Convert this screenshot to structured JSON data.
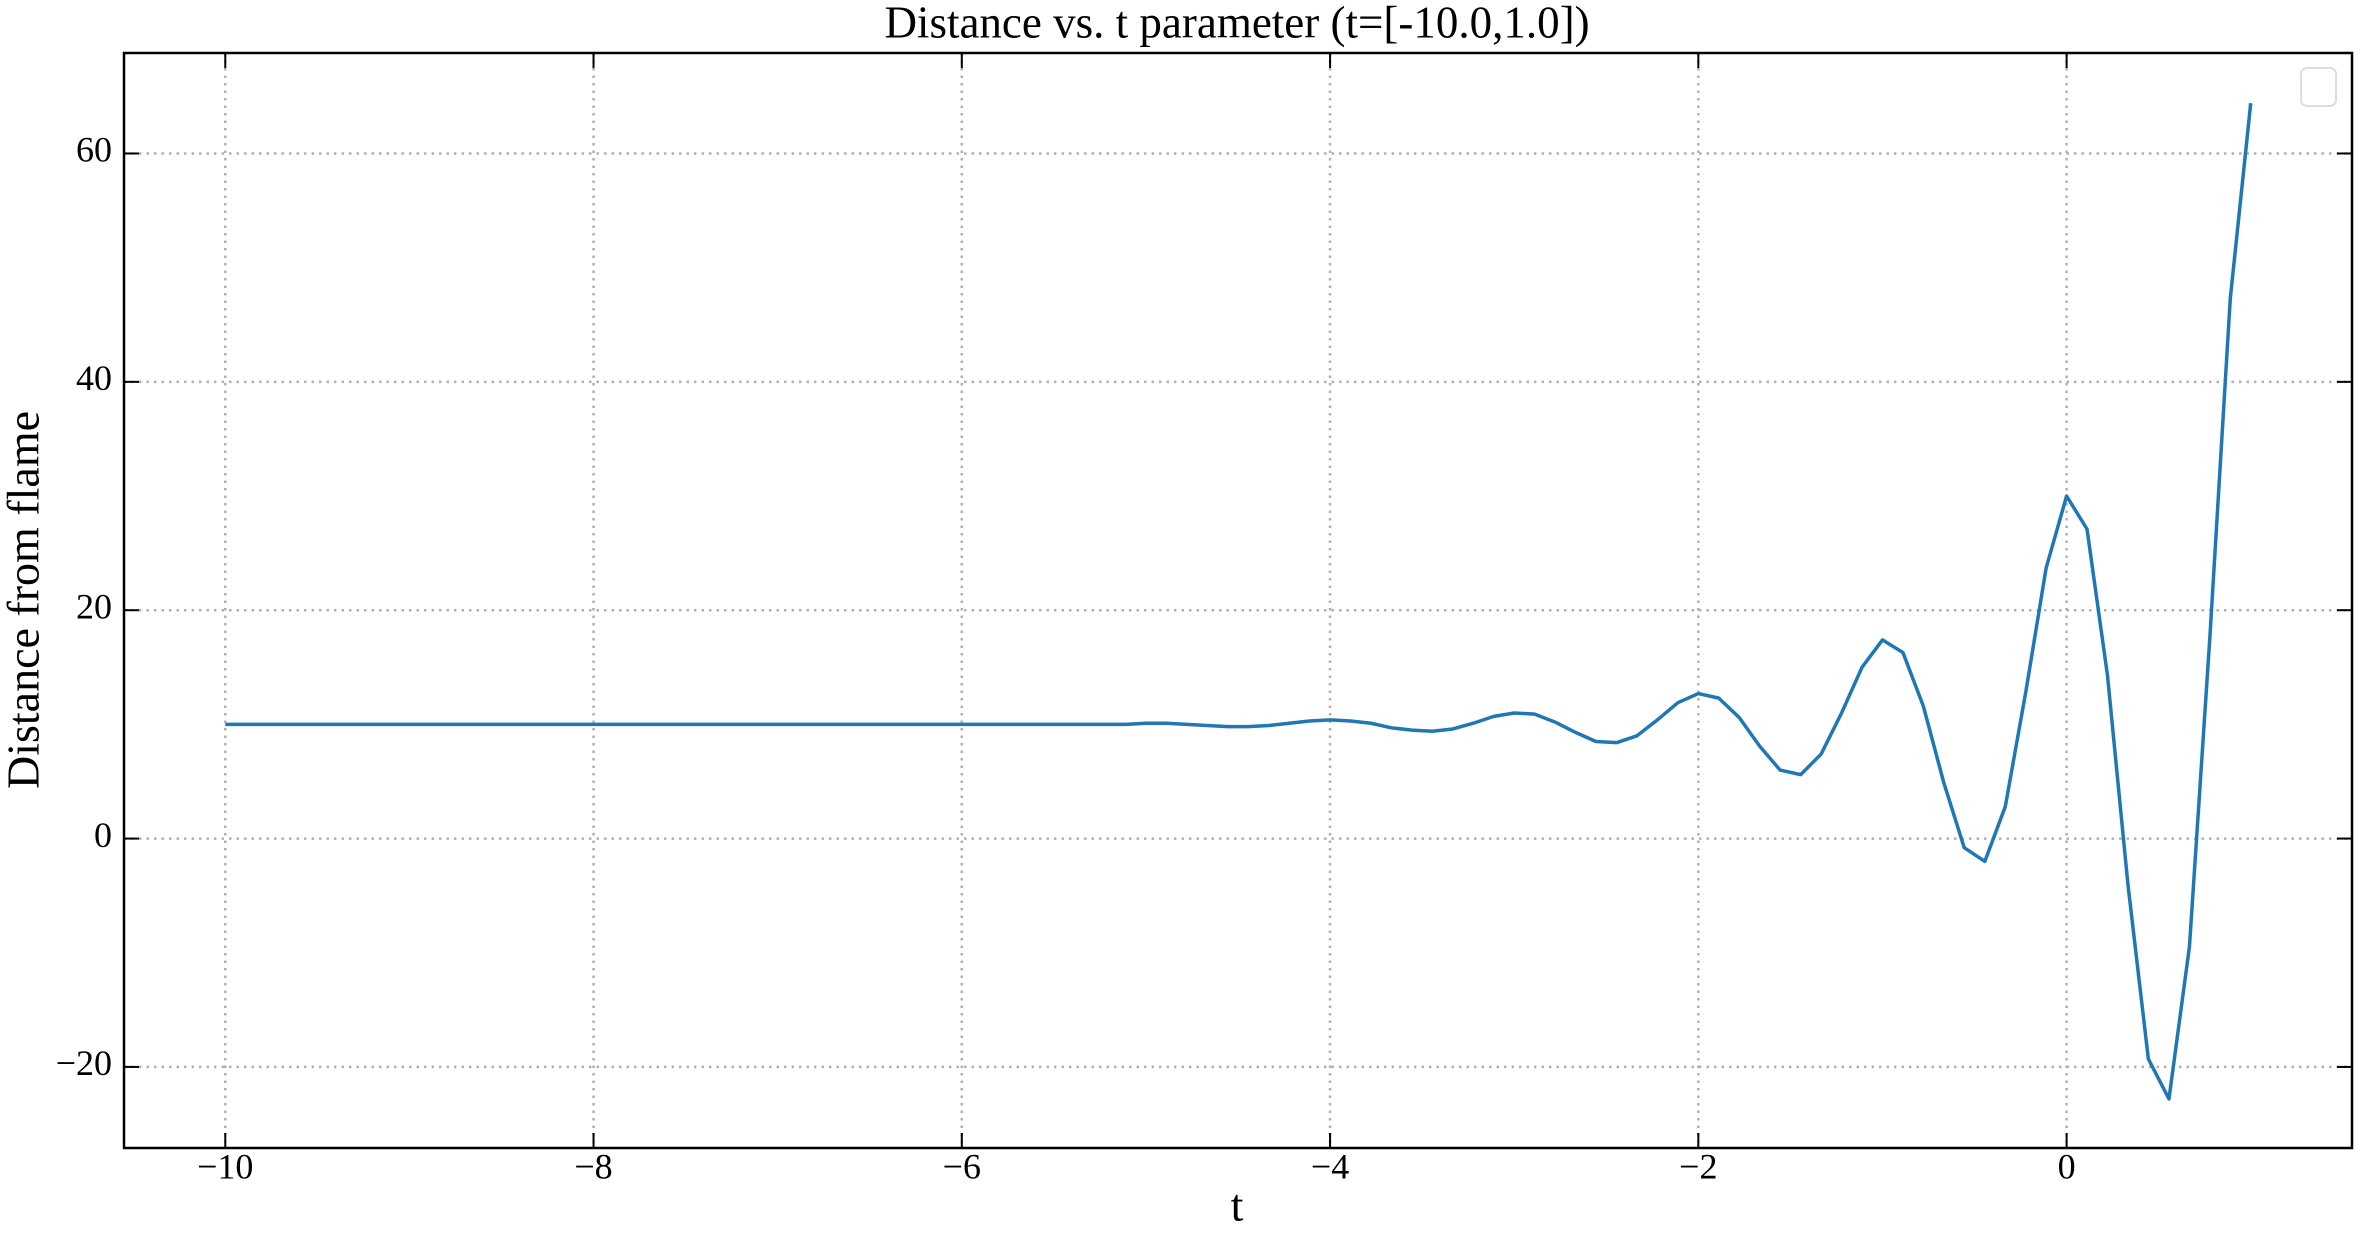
{
  "chart_data": {
    "type": "line",
    "title": "Distance vs. t parameter (t=[-10.0,1.0])",
    "x_label": "t",
    "y_label": "Distance from flame",
    "x": [
      -10,
      -9.889,
      -9.778,
      -9.667,
      -9.556,
      -9.444,
      -9.333,
      -9.222,
      -9.111,
      -9,
      -8.889,
      -8.778,
      -8.667,
      -8.556,
      -8.444,
      -8.333,
      -8.222,
      -8.111,
      -8,
      -7.889,
      -7.778,
      -7.667,
      -7.556,
      -7.444,
      -7.333,
      -7.222,
      -7.111,
      -7,
      -6.889,
      -6.778,
      -6.667,
      -6.556,
      -6.444,
      -6.333,
      -6.222,
      -6.111,
      -6,
      -5.889,
      -5.778,
      -5.667,
      -5.556,
      -5.444,
      -5.333,
      -5.222,
      -5.111,
      -5,
      -4.889,
      -4.778,
      -4.667,
      -4.556,
      -4.444,
      -4.333,
      -4.222,
      -4.111,
      -4,
      -3.889,
      -3.778,
      -3.667,
      -3.556,
      -3.444,
      -3.333,
      -3.222,
      -3.111,
      -3,
      -2.889,
      -2.778,
      -2.667,
      -2.556,
      -2.444,
      -2.333,
      -2.222,
      -2.111,
      -2,
      -1.889,
      -1.778,
      -1.667,
      -1.556,
      -1.444,
      -1.333,
      -1.222,
      -1.111,
      -1,
      -0.889,
      -0.778,
      -0.667,
      -0.556,
      -0.444,
      -0.333,
      -0.222,
      -0.111,
      0,
      0.111,
      0.222,
      0.333,
      0.444,
      0.556,
      0.667,
      0.778,
      0.889,
      1
    ],
    "series": [
      {
        "color": "#1f77b4",
        "values": [
          10,
          10,
          10,
          10,
          10,
          10,
          10,
          10,
          10,
          10,
          10,
          10,
          10,
          10,
          10,
          10,
          10,
          10,
          10,
          10,
          10,
          10,
          10,
          10,
          10,
          10,
          10,
          10,
          10,
          10,
          10,
          10,
          10,
          10,
          10,
          10,
          10,
          10,
          10,
          10,
          10,
          10,
          10,
          10,
          10,
          10.1,
          10.1,
          10,
          9.9,
          9.8,
          9.8,
          9.9,
          10.1,
          10.3,
          10.4,
          10.3,
          10.1,
          9.7,
          9.5,
          9.4,
          9.6,
          10.1,
          10.7,
          11.0,
          10.9,
          10.2,
          9.3,
          8.5,
          8.4,
          9.0,
          10.4,
          11.9,
          12.7,
          12.3,
          10.6,
          8.1,
          6.0,
          5.6,
          7.4,
          11.0,
          15.0,
          17.4,
          16.3,
          11.6,
          4.9,
          -0.8,
          -2.0,
          2.8,
          12.8,
          23.7,
          30.0,
          27.1,
          14.3,
          -4.0,
          -19.3,
          -22.8,
          -9.5,
          17.6,
          47.3,
          64.4
        ]
      }
    ],
    "xlim": [
      -10.55,
      1.55
    ],
    "ylim": [
      -27.1,
      68.8
    ],
    "xticks": [
      {
        "value": -10,
        "label": "−10"
      },
      {
        "value": -8,
        "label": "−8"
      },
      {
        "value": -6,
        "label": "−6"
      },
      {
        "value": -4,
        "label": "−4"
      },
      {
        "value": -2,
        "label": "−2"
      },
      0
    ],
    "yticks": [
      {
        "value": -20,
        "label": "−20"
      },
      0,
      20,
      40,
      60
    ],
    "grid": true
  }
}
